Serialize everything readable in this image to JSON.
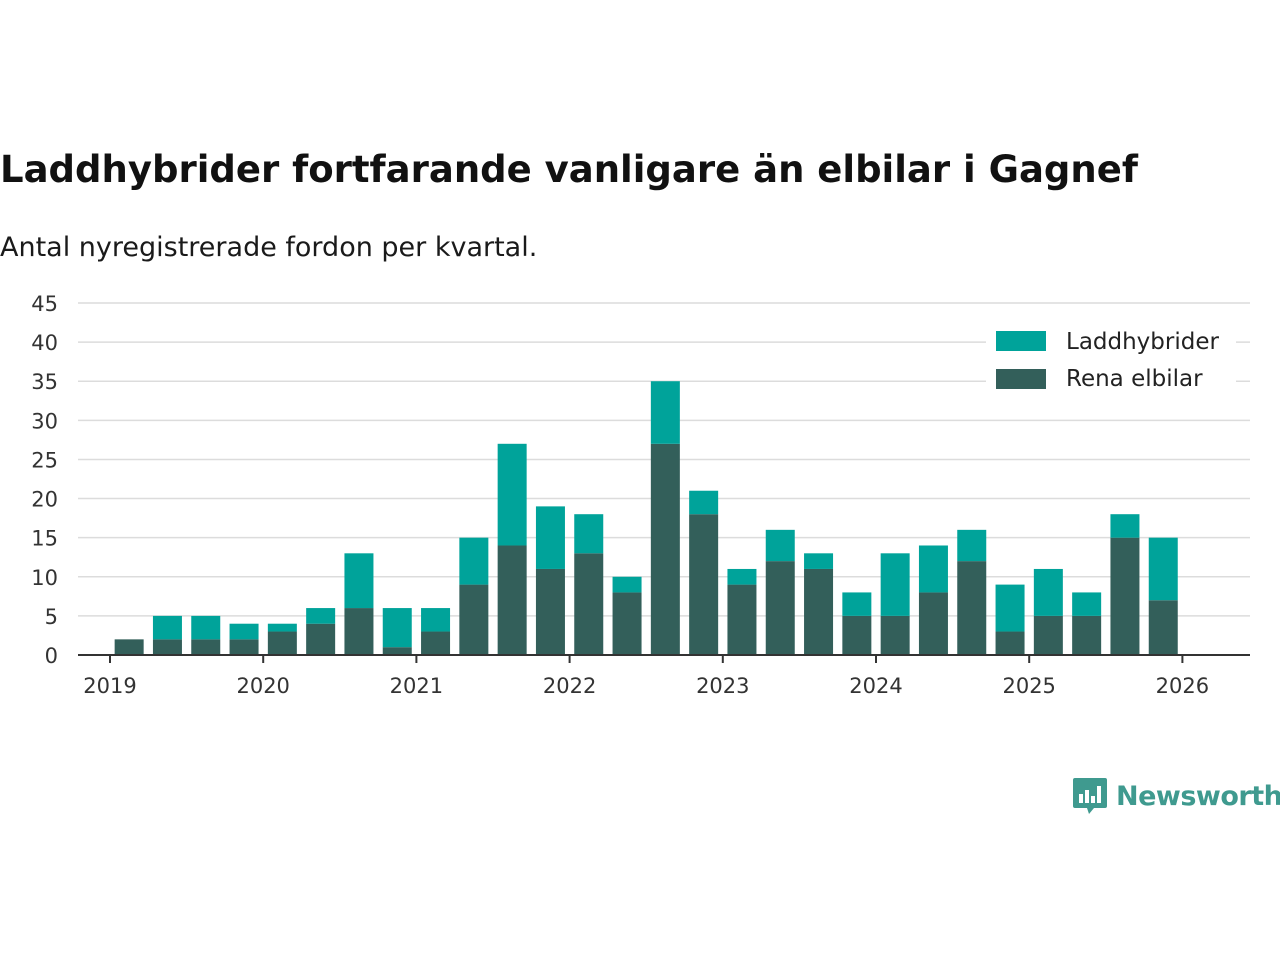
{
  "title": "Laddhybrider fortfarande vanligare än elbilar i Gagnef",
  "subtitle": "Antal nyregistrerade fordon per kvartal.",
  "brand": "Newsworthy",
  "colors": {
    "laddhybrider": "#00a39a",
    "elbilar": "#335f5a",
    "brand": "#3f9a8f"
  },
  "chart_data": {
    "type": "bar",
    "stacked": true,
    "title": "Laddhybrider fortfarande vanligare än elbilar i Gagnef",
    "subtitle": "Antal nyregistrerade fordon per kvartal.",
    "xlabel": "",
    "ylabel": "",
    "ylim": [
      0,
      45
    ],
    "yticks": [
      "0",
      "5",
      "10",
      "15",
      "20",
      "25",
      "30",
      "35",
      "40",
      "45"
    ],
    "xticks": [
      "2019",
      "2020",
      "2021",
      "2022",
      "2023",
      "2024",
      "2025",
      "2026"
    ],
    "grid": true,
    "legend_position": "top-right",
    "categories": [
      "2019Q1",
      "2019Q2",
      "2019Q3",
      "2019Q4",
      "2020Q1",
      "2020Q2",
      "2020Q3",
      "2020Q4",
      "2021Q1",
      "2021Q2",
      "2021Q3",
      "2021Q4",
      "2022Q1",
      "2022Q2",
      "2022Q3",
      "2022Q4",
      "2023Q1",
      "2023Q2",
      "2023Q3",
      "2023Q4",
      "2024Q1",
      "2024Q2",
      "2024Q3",
      "2024Q4",
      "2025Q1",
      "2025Q2",
      "2025Q3",
      "2025Q4"
    ],
    "series": [
      {
        "name": "Rena elbilar",
        "color": "#335f5a",
        "values": [
          2,
          2,
          2,
          2,
          3,
          4,
          6,
          1,
          3,
          9,
          14,
          11,
          13,
          8,
          27,
          18,
          9,
          12,
          11,
          5,
          5,
          8,
          12,
          3,
          5,
          5,
          15,
          7
        ]
      },
      {
        "name": "Laddhybrider",
        "color": "#00a39a",
        "values": [
          0,
          3,
          3,
          2,
          1,
          2,
          7,
          5,
          3,
          6,
          13,
          8,
          5,
          2,
          8,
          3,
          2,
          4,
          2,
          3,
          8,
          6,
          4,
          6,
          6,
          3,
          3,
          8
        ]
      }
    ],
    "legend": [
      "Laddhybrider",
      "Rena elbilar"
    ]
  }
}
